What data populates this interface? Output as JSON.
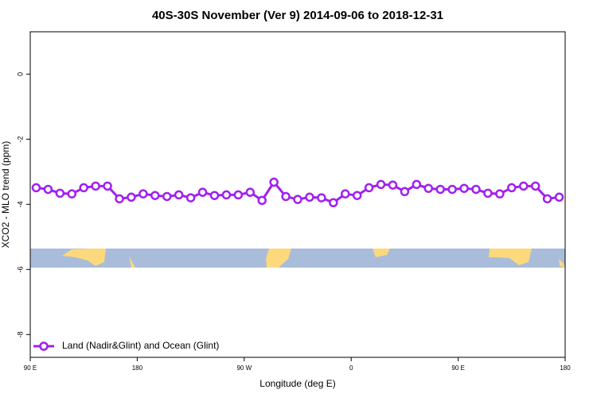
{
  "chart_data": {
    "type": "line",
    "title": "40S-30S November (Ver 9)   2014-09-06 to 2018-12-31",
    "xlabel": "Longitude (deg E)",
    "ylabel": "XCO2 - MLO trend (ppm)",
    "x": [
      95,
      105,
      115,
      125,
      135,
      145,
      155,
      165,
      175,
      185,
      195,
      205,
      215,
      225,
      235,
      245,
      255,
      265,
      275,
      285,
      295,
      305,
      315,
      325,
      335,
      345,
      355,
      365,
      375,
      385,
      395,
      405,
      415,
      425,
      435,
      445,
      455,
      465,
      475,
      485,
      495,
      505,
      515,
      525,
      535
    ],
    "series": [
      {
        "name": "Land (Nadir&Glint) and Ocean (Glint)",
        "color": "#a020f0",
        "values": [
          -3.49,
          -3.54,
          -3.66,
          -3.68,
          -3.49,
          -3.44,
          -3.44,
          -3.83,
          -3.78,
          -3.68,
          -3.73,
          -3.76,
          -3.71,
          -3.8,
          -3.63,
          -3.73,
          -3.71,
          -3.71,
          -3.63,
          -3.88,
          -3.32,
          -3.76,
          -3.85,
          -3.78,
          -3.8,
          -3.95,
          -3.68,
          -3.73,
          -3.49,
          -3.39,
          -3.41,
          -3.61,
          -3.39,
          -3.51,
          -3.54,
          -3.54,
          -3.51,
          -3.54,
          -3.66,
          -3.68,
          -3.49,
          -3.44,
          -3.44,
          -3.83,
          -3.78
        ]
      }
    ],
    "xlim": [
      90,
      540
    ],
    "xticks": [
      {
        "value": 90,
        "label": "90 E"
      },
      180,
      {
        "value": 270,
        "label": "90 W"
      },
      0,
      {
        "value": 450,
        "label": "90 E"
      },
      180
    ],
    "ylim": [
      -8.7,
      1.3
    ],
    "yticks": [
      0,
      -2,
      -4,
      -6,
      -8
    ],
    "legend": "bottom-left"
  }
}
